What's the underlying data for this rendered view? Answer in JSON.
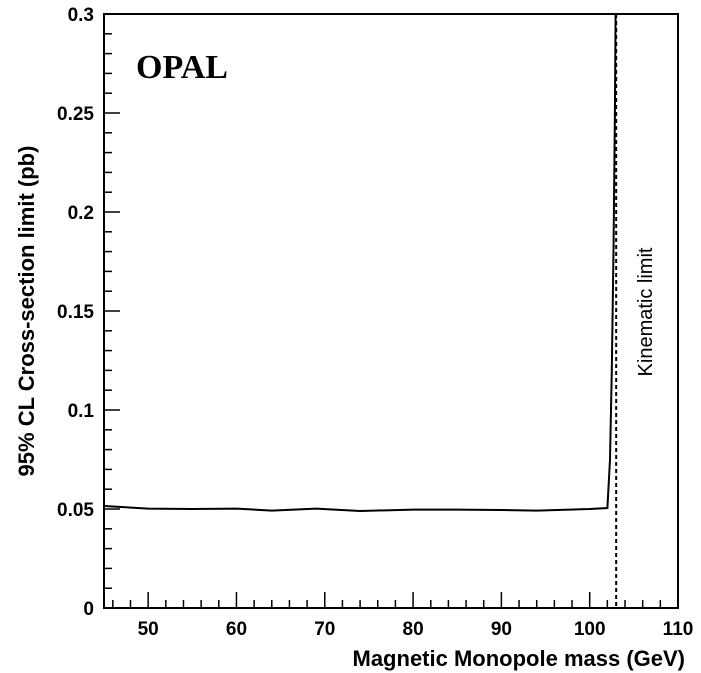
{
  "chart_data": {
    "type": "line",
    "title": "",
    "xlabel": "Magnetic Monopole mass (GeV)",
    "ylabel": "95% CL Cross-section limit (pb)",
    "xlim": [
      45,
      110
    ],
    "ylim": [
      0,
      0.3
    ],
    "x_ticks": [
      50,
      60,
      70,
      80,
      90,
      100,
      110
    ],
    "x_tick_labels": [
      "50",
      "60",
      "70",
      "80",
      "90",
      "100",
      "110"
    ],
    "y_ticks": [
      0,
      0.05,
      0.1,
      0.15,
      0.2,
      0.25,
      0.3
    ],
    "y_tick_labels": [
      "0",
      "0.05",
      "0.1",
      "0.15",
      "0.2",
      "0.25",
      "0.3"
    ],
    "grid": false,
    "experiment_label": "OPAL",
    "series": [
      {
        "x": [
          45,
          50,
          55,
          60,
          64,
          69,
          74,
          80,
          85,
          90,
          94,
          100,
          102.0,
          102.3,
          102.5,
          102.7,
          102.85,
          102.95
        ],
        "y": [
          0.0515,
          0.0502,
          0.05,
          0.0502,
          0.0492,
          0.0502,
          0.049,
          0.0497,
          0.0497,
          0.0495,
          0.0492,
          0.05,
          0.0505,
          0.075,
          0.12,
          0.18,
          0.25,
          0.31
        ]
      }
    ],
    "reference_line": {
      "x": 103.0,
      "style": "dashed",
      "label": "Kinematic limit"
    }
  }
}
